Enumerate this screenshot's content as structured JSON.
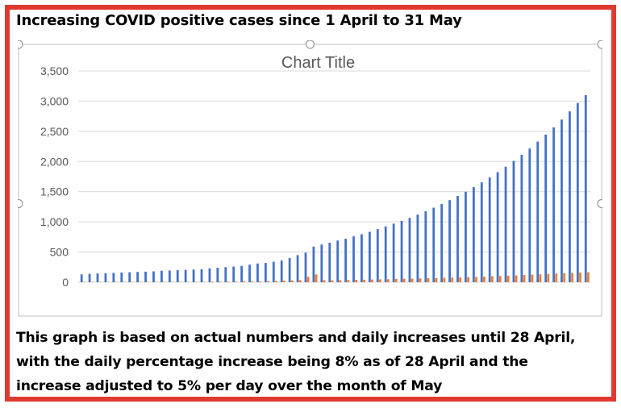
{
  "heading": "Increasing COVID positive cases since 1 April to 31 May",
  "caption_lines": [
    "This graph is based on actual numbers and daily increases until 28 April,",
    "with the daily percentage increase being 8% as of 28 April and the",
    "increase adjusted to 5% per day over the month of May"
  ],
  "chart_data": {
    "type": "bar",
    "title": "Chart Title",
    "xlabel": "",
    "ylabel": "",
    "ylim": [
      0,
      3500
    ],
    "yticks": [
      0,
      500,
      1000,
      1500,
      2000,
      2500,
      3000,
      3500
    ],
    "ytick_labels": [
      "0",
      "500",
      "1,000",
      "1,500",
      "2,000",
      "2,500",
      "3,000",
      "3,500"
    ],
    "grid": true,
    "legend": "none",
    "series": [
      {
        "color": "#4472c4",
        "values": [
          130,
          140,
          145,
          150,
          155,
          160,
          165,
          170,
          175,
          180,
          190,
          195,
          200,
          205,
          210,
          215,
          230,
          240,
          250,
          260,
          270,
          290,
          310,
          320,
          340,
          360,
          400,
          450,
          490,
          590,
          625,
          655,
          690,
          720,
          760,
          795,
          835,
          880,
          925,
          970,
          1015,
          1065,
          1120,
          1175,
          1235,
          1295,
          1360,
          1430,
          1500,
          1575,
          1655,
          1735,
          1825,
          1915,
          2010,
          2110,
          2215,
          2330,
          2445,
          2565,
          2695,
          2830,
          2970,
          3100
        ]
      },
      {
        "color": "#ed7d31",
        "values": [
          5,
          5,
          5,
          5,
          5,
          5,
          5,
          5,
          5,
          5,
          5,
          5,
          5,
          5,
          5,
          5,
          10,
          10,
          10,
          10,
          15,
          15,
          15,
          20,
          20,
          25,
          30,
          35,
          90,
          130,
          35,
          32,
          35,
          38,
          40,
          42,
          45,
          48,
          50,
          55,
          58,
          60,
          63,
          66,
          70,
          73,
          77,
          81,
          85,
          89,
          94,
          98,
          103,
          108,
          113,
          119,
          125,
          131,
          138,
          145,
          150,
          155,
          160,
          165
        ]
      }
    ]
  }
}
